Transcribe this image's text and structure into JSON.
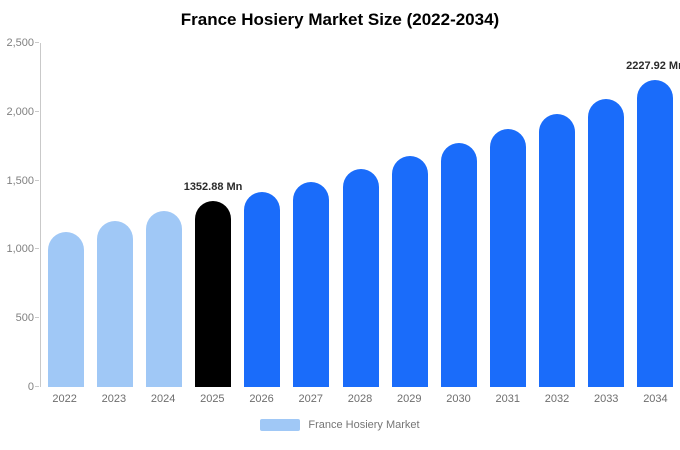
{
  "title": "France Hosiery Market Size (2022-2034)",
  "legend": {
    "label": "France Hosiery Market",
    "swatch_color": "#a0c8f6"
  },
  "colors": {
    "historical": "#a0c8f6",
    "highlight": "#000000",
    "forecast": "#1a6cfa",
    "axis": "#c9c9c9"
  },
  "chart_data": {
    "type": "bar",
    "title": "France Hosiery Market Size (2022-2034)",
    "xlabel": "",
    "ylabel": "",
    "ylim": [
      0,
      2500
    ],
    "grid": false,
    "legend_position": "bottom",
    "unit": "Mn",
    "categories": [
      "2022",
      "2023",
      "2024",
      "2025",
      "2026",
      "2027",
      "2028",
      "2029",
      "2030",
      "2031",
      "2032",
      "2033",
      "2034"
    ],
    "values": [
      1126,
      1206,
      1279,
      1352.88,
      1417,
      1490,
      1584,
      1679,
      1773,
      1875,
      1984,
      2093,
      2227.92
    ],
    "bar_colors": [
      "#a0c8f6",
      "#a0c8f6",
      "#a0c8f6",
      "#000000",
      "#1a6cfa",
      "#1a6cfa",
      "#1a6cfa",
      "#1a6cfa",
      "#1a6cfa",
      "#1a6cfa",
      "#1a6cfa",
      "#1a6cfa",
      "#1a6cfa"
    ],
    "annotations": [
      {
        "category": "2025",
        "text": "1352.88 Mn"
      },
      {
        "category": "2034",
        "text": "2227.92 Mn"
      }
    ],
    "yticks": [
      {
        "value": 0,
        "label": "0"
      },
      {
        "value": 500,
        "label": "500"
      },
      {
        "value": 1000,
        "label": "1,000"
      },
      {
        "value": 1500,
        "label": "1,500"
      },
      {
        "value": 2000,
        "label": "2,000"
      },
      {
        "value": 2500,
        "label": "2,500"
      }
    ]
  }
}
